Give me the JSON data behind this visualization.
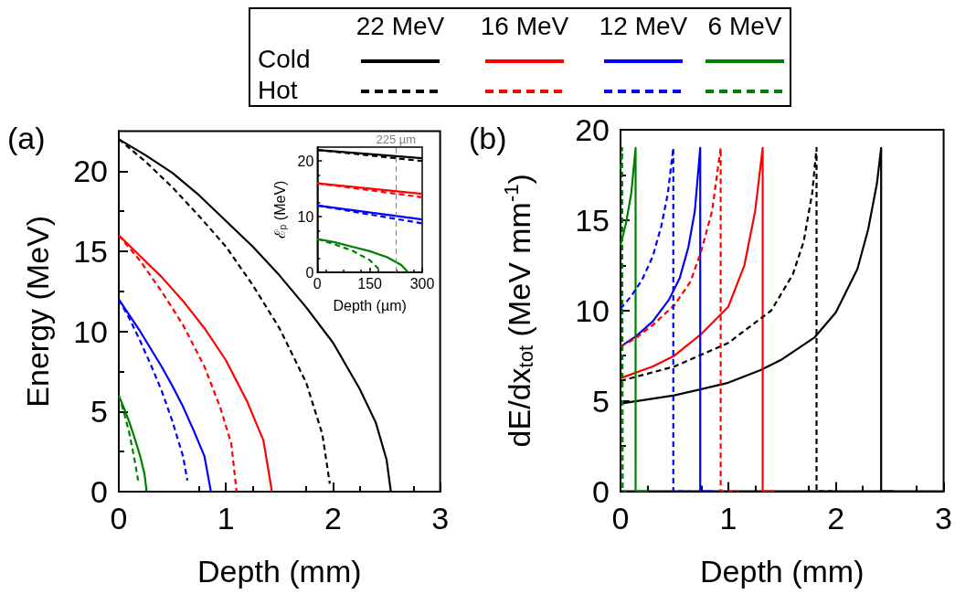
{
  "chart_data": [
    {
      "type": "line",
      "xlabel": "Depth (mm)",
      "ylabel": "Energy (MeV)",
      "xlim": [
        0,
        3
      ],
      "ylim": [
        0,
        22.5
      ],
      "xticks": [
        0,
        1,
        2,
        3
      ],
      "yticks": [
        0,
        5,
        10,
        15,
        20
      ],
      "grid": false,
      "marker": "none",
      "annotations": [
        "(a)",
        "22 MeV",
        "16 MeV",
        "12 MeV",
        "6 MeV",
        "Cold",
        "Hot"
      ],
      "series": [
        {
          "color": "#000000",
          "line_style": "solid",
          "x": [
            0,
            0.25,
            0.5,
            0.75,
            1.0,
            1.25,
            1.5,
            1.75,
            2.0,
            2.25,
            2.4,
            2.5,
            2.54
          ],
          "values": [
            22,
            21.0,
            19.9,
            18.5,
            16.9,
            15.3,
            13.5,
            11.5,
            9.3,
            6.4,
            4.3,
            2.0,
            0
          ]
        },
        {
          "color": "#ff0000",
          "line_style": "solid",
          "x": [
            0,
            0.2,
            0.4,
            0.6,
            0.8,
            1.0,
            1.2,
            1.35,
            1.43
          ],
          "values": [
            16,
            14.7,
            13.4,
            11.9,
            10.2,
            8.2,
            5.6,
            3.2,
            0
          ]
        },
        {
          "color": "#0000ff",
          "line_style": "solid",
          "x": [
            0,
            0.1,
            0.2,
            0.3,
            0.4,
            0.5,
            0.6,
            0.7,
            0.8,
            0.86
          ],
          "values": [
            12,
            11.0,
            10.0,
            8.9,
            7.8,
            6.6,
            5.3,
            3.8,
            2.2,
            0
          ]
        },
        {
          "color": "#008000",
          "line_style": "solid",
          "x": [
            0,
            0.05,
            0.1,
            0.15,
            0.2,
            0.24,
            0.26
          ],
          "values": [
            6,
            5.2,
            4.3,
            3.3,
            2.2,
            1.1,
            0
          ]
        },
        {
          "color": "#000000",
          "line_style": "dashed",
          "x": [
            0,
            0.25,
            0.5,
            0.75,
            1.0,
            1.25,
            1.5,
            1.75,
            1.9,
            1.97
          ],
          "values": [
            22,
            20.6,
            19.0,
            17.2,
            15.3,
            12.9,
            10.2,
            6.8,
            3.6,
            0.5
          ]
        },
        {
          "color": "#ff0000",
          "line_style": "dashed",
          "x": [
            0,
            0.2,
            0.4,
            0.6,
            0.8,
            0.95,
            1.05,
            1.1
          ],
          "values": [
            16,
            14.4,
            12.5,
            10.4,
            7.8,
            5.2,
            3.0,
            0
          ]
        },
        {
          "color": "#0000ff",
          "line_style": "dashed",
          "x": [
            0,
            0.1,
            0.2,
            0.3,
            0.4,
            0.5,
            0.6,
            0.64
          ],
          "values": [
            12,
            10.8,
            9.4,
            7.9,
            6.3,
            4.4,
            2.2,
            0.7
          ]
        },
        {
          "color": "#008000",
          "line_style": "dashed",
          "x": [
            0,
            0.05,
            0.1,
            0.15,
            0.18
          ],
          "values": [
            6,
            4.9,
            3.6,
            1.9,
            0.7
          ]
        }
      ]
    },
    {
      "type": "line",
      "xlabel": "Depth (µm)",
      "ylabel": "ℰ$_{p}$ (MeV)",
      "xlim": [
        0,
        300
      ],
      "ylim": [
        0,
        22.5
      ],
      "xticks": [
        0,
        150,
        300
      ],
      "yticks": [
        0,
        10,
        20
      ],
      "grid": false,
      "marker": "none",
      "ref_lines": [
        {
          "axis": "x",
          "value": 225,
          "label": "225 µm",
          "color": "#808080",
          "line_style": "dashed"
        }
      ],
      "series": [
        {
          "color": "#000000",
          "line_style": "solid",
          "x": [
            0,
            300
          ],
          "values": [
            22,
            20.5
          ]
        },
        {
          "color": "#ff0000",
          "line_style": "solid",
          "x": [
            0,
            300
          ],
          "values": [
            16,
            14.1
          ]
        },
        {
          "color": "#0000ff",
          "line_style": "solid",
          "x": [
            0,
            300
          ],
          "values": [
            12,
            9.5
          ]
        },
        {
          "color": "#008000",
          "line_style": "solid",
          "x": [
            0,
            50,
            100,
            150,
            200,
            240,
            260
          ],
          "values": [
            6,
            5.4,
            4.6,
            3.8,
            2.7,
            1.3,
            0
          ]
        },
        {
          "color": "#000000",
          "line_style": "dashed",
          "x": [
            0,
            300
          ],
          "values": [
            22,
            20.0
          ]
        },
        {
          "color": "#ff0000",
          "line_style": "dashed",
          "x": [
            0,
            300
          ],
          "values": [
            16,
            13.5
          ]
        },
        {
          "color": "#0000ff",
          "line_style": "dashed",
          "x": [
            0,
            300
          ],
          "values": [
            12,
            8.8
          ]
        },
        {
          "color": "#008000",
          "line_style": "dashed",
          "x": [
            0,
            50,
            100,
            150,
            180
          ],
          "values": [
            6,
            5.0,
            3.9,
            2.2,
            0.3
          ]
        }
      ]
    },
    {
      "type": "line",
      "xlabel": "Depth (mm)",
      "ylabel": "dE/dx$_{tot}$ (MeV mm$^{-1}$)",
      "xlim": [
        0,
        3
      ],
      "ylim": [
        0,
        20
      ],
      "xticks": [
        0,
        1,
        2,
        3
      ],
      "yticks": [
        0,
        5,
        10,
        15,
        20
      ],
      "grid": false,
      "marker": "none",
      "annotations": [
        "(b)"
      ],
      "series": [
        {
          "color": "#000000",
          "line_style": "solid",
          "x": [
            0,
            0.5,
            1.0,
            1.3,
            1.5,
            1.8,
            2.0,
            2.2,
            2.3,
            2.38,
            2.42,
            2.42,
            2.54
          ],
          "values": [
            4.85,
            5.3,
            6.0,
            6.7,
            7.3,
            8.5,
            9.9,
            12.3,
            14.5,
            17,
            19,
            0,
            0
          ]
        },
        {
          "color": "#ff0000",
          "line_style": "solid",
          "x": [
            0,
            0.3,
            0.5,
            0.75,
            1.0,
            1.15,
            1.25,
            1.32,
            1.32,
            1.43
          ],
          "values": [
            6.25,
            6.9,
            7.5,
            8.7,
            10.2,
            12.5,
            15.5,
            19,
            0,
            0
          ]
        },
        {
          "color": "#0000ff",
          "line_style": "solid",
          "x": [
            0,
            0.15,
            0.3,
            0.45,
            0.55,
            0.63,
            0.69,
            0.74,
            0.74,
            0.86
          ],
          "values": [
            8.0,
            8.6,
            9.4,
            10.6,
            11.8,
            13.5,
            15.5,
            19,
            0,
            0
          ]
        },
        {
          "color": "#008000",
          "line_style": "solid",
          "x": [
            0,
            0.05,
            0.1,
            0.14,
            0.14,
            0.26
          ],
          "values": [
            13.6,
            14.8,
            16.5,
            19,
            0,
            0
          ]
        },
        {
          "color": "#000000",
          "line_style": "dashed",
          "x": [
            0,
            0.5,
            1.0,
            1.4,
            1.6,
            1.7,
            1.78,
            1.82,
            1.82,
            1.97
          ],
          "values": [
            6.1,
            6.9,
            8.2,
            10.0,
            12.0,
            13.8,
            16.5,
            19,
            0,
            0
          ]
        },
        {
          "color": "#ff0000",
          "line_style": "dashed",
          "x": [
            0,
            0.15,
            0.3,
            0.5,
            0.65,
            0.75,
            0.85,
            0.93,
            0.93,
            1.1
          ],
          "values": [
            8.0,
            8.5,
            9.2,
            10.3,
            11.6,
            13.3,
            15.5,
            19,
            0,
            0
          ]
        },
        {
          "color": "#0000ff",
          "line_style": "dashed",
          "x": [
            0,
            0.1,
            0.2,
            0.3,
            0.38,
            0.44,
            0.49,
            0.49,
            0.53,
            0.64
          ],
          "values": [
            10.1,
            10.8,
            11.7,
            13.0,
            14.7,
            16.5,
            19,
            0,
            0,
            0
          ]
        },
        {
          "color": "#008000",
          "line_style": "dashed",
          "x": [
            0,
            0.015,
            0.02,
            0.06
          ],
          "values": [
            17.8,
            19,
            0,
            0
          ]
        }
      ]
    }
  ]
}
